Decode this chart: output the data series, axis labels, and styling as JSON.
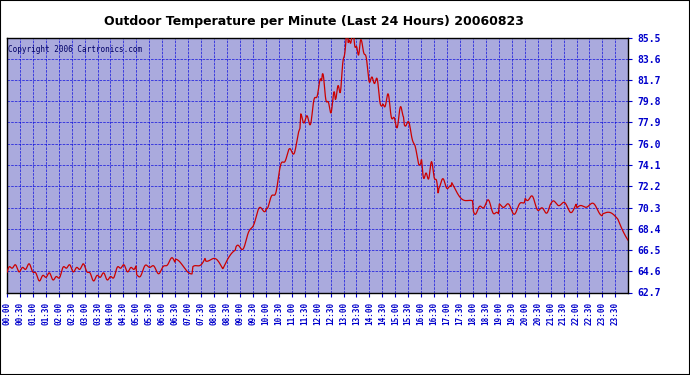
{
  "title": "Outdoor Temperature per Minute (Last 24 Hours) 20060823",
  "copyright": "Copyright 2006 Cartronics.com",
  "line_color": "#cc0000",
  "yticks": [
    62.7,
    64.6,
    66.5,
    68.4,
    70.3,
    72.2,
    74.1,
    76.0,
    77.9,
    79.8,
    81.7,
    83.6,
    85.5
  ],
  "ymin": 62.7,
  "ymax": 85.5,
  "num_minutes": 1440,
  "plot_bg_color": "#aaaadd",
  "fig_bg_color": "#ffffff",
  "grid_color": "#0000dd",
  "tick_label_color": "#0000cc",
  "title_color": "#000000",
  "border_color": "#000000",
  "copyright_color": "#000066"
}
